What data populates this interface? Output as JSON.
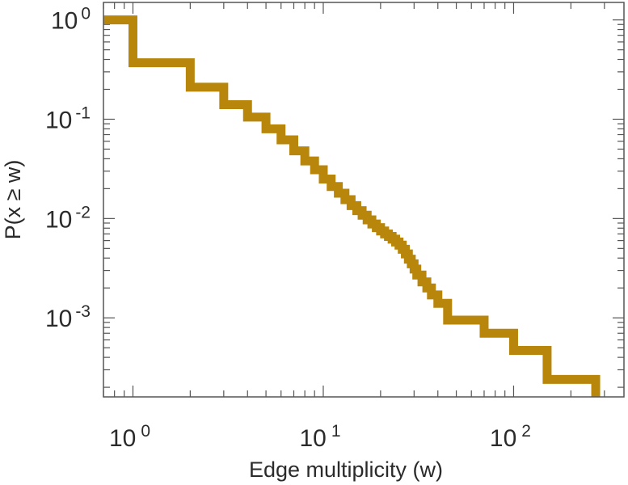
{
  "chart_data": {
    "type": "line",
    "style": "step",
    "xlabel": "Edge multiplicity (w)",
    "ylabel": "P(x ≥ w)",
    "x_scale": "log",
    "y_scale": "log",
    "xlim": [
      0.7,
      380
    ],
    "ylim": [
      0.00016,
      1.5
    ],
    "x_ticks": [
      {
        "value": 1,
        "base": "10",
        "exp": "0"
      },
      {
        "value": 10,
        "base": "10",
        "exp": "1"
      },
      {
        "value": 100,
        "base": "10",
        "exp": "2"
      }
    ],
    "y_ticks": [
      {
        "value": 1,
        "base": "10",
        "exp": "0"
      },
      {
        "value": 0.1,
        "base": "10",
        "exp": "-1"
      },
      {
        "value": 0.01,
        "base": "10",
        "exp": "-2"
      },
      {
        "value": 0.001,
        "base": "10",
        "exp": "-3"
      }
    ],
    "grid": false,
    "series_color": "#b8860b",
    "series": [
      {
        "x": [
          0.7,
          1,
          2,
          3,
          4,
          5,
          6,
          7,
          8,
          9,
          10,
          11,
          12,
          13,
          14,
          15,
          16,
          17,
          18,
          19,
          20,
          21,
          22,
          23,
          24,
          25,
          26,
          27,
          28,
          29,
          30,
          31,
          33,
          35,
          37,
          40,
          45,
          70,
          100,
          150,
          270
        ],
        "y": [
          1.0,
          0.37,
          0.21,
          0.14,
          0.105,
          0.08,
          0.062,
          0.048,
          0.038,
          0.031,
          0.025,
          0.021,
          0.018,
          0.0155,
          0.0135,
          0.012,
          0.0108,
          0.0097,
          0.0088,
          0.0081,
          0.0075,
          0.007,
          0.0066,
          0.0062,
          0.0058,
          0.0054,
          0.0049,
          0.0044,
          0.0039,
          0.0035,
          0.0031,
          0.0027,
          0.0023,
          0.002,
          0.0017,
          0.0014,
          0.00095,
          0.0007,
          0.00047,
          0.00024,
          0.00017
        ]
      }
    ]
  }
}
